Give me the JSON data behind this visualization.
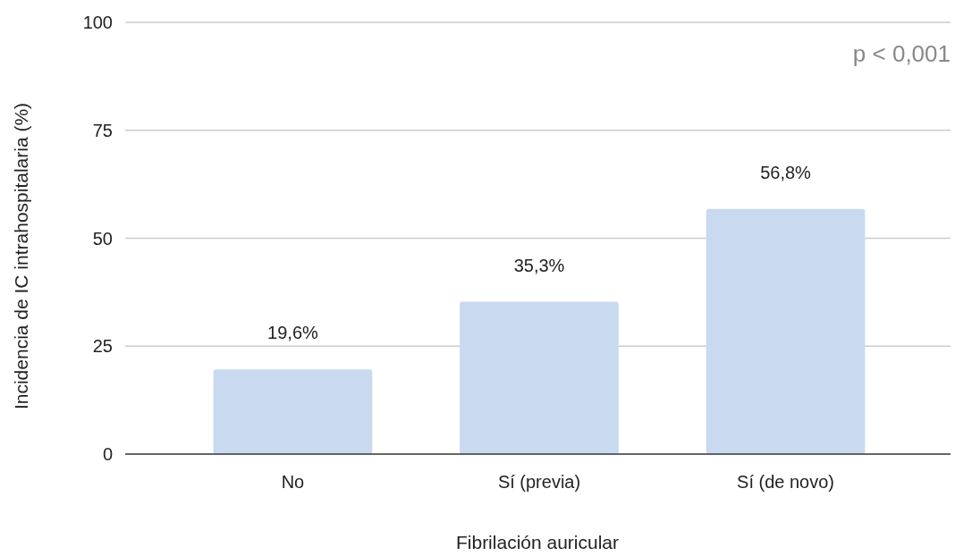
{
  "chart_data": {
    "type": "bar",
    "xlabel": "Fibrilación auricular",
    "ylabel": "Incidencia de IC intrahospitalaria (%)",
    "categories": [
      "No",
      "Sí (previa)",
      "Sí (de novo)"
    ],
    "values": [
      19.6,
      35.3,
      56.8
    ],
    "value_labels": [
      "19,6%",
      "35,3%",
      "56,8%"
    ],
    "color": "#c9d9ef",
    "ylim": [
      0,
      100
    ],
    "yticks": [
      0,
      25,
      50,
      75,
      100
    ],
    "grid": "y",
    "annotations": [
      "p < 0,001"
    ]
  }
}
